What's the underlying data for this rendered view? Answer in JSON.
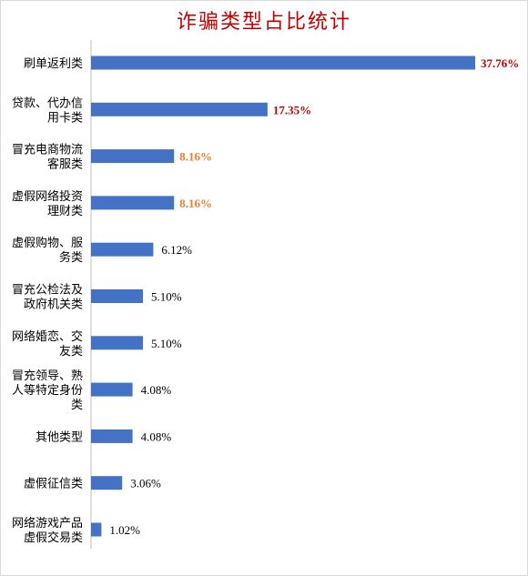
{
  "chart_data": {
    "type": "bar",
    "orientation": "horizontal",
    "title": "诈骗类型占比统计",
    "categories": [
      [
        "刷单返利类"
      ],
      [
        "贷款、代办信",
        "用卡类"
      ],
      [
        "冒充电商物流",
        "客服类"
      ],
      [
        "虚假网络投资",
        "理财类"
      ],
      [
        "虚假购物、服",
        "务类"
      ],
      [
        "冒充公检法及",
        "政府机关类"
      ],
      [
        "网络婚恋、交",
        "友类"
      ],
      [
        "冒充领导、熟",
        "人等特定身份",
        "类"
      ],
      [
        "其他类型"
      ],
      [
        "虚假征信类"
      ],
      [
        "网络游戏产品",
        "虚假交易类"
      ]
    ],
    "values": [
      37.76,
      17.35,
      8.16,
      8.16,
      6.12,
      5.1,
      5.1,
      4.08,
      4.08,
      3.06,
      1.02
    ],
    "labels": [
      "37.76%",
      "17.35%",
      "8.16%",
      "8.16%",
      "6.12%",
      "5.10%",
      "5.10%",
      "4.08%",
      "4.08%",
      "3.06%",
      "1.02%"
    ],
    "label_styles": [
      "red",
      "red",
      "orange",
      "orange",
      "plain",
      "plain",
      "plain",
      "plain",
      "plain",
      "plain",
      "plain"
    ],
    "xlim": [
      0,
      37.76
    ],
    "grid": false,
    "legend": "none",
    "colors": {
      "bar": "#4472c4",
      "title": "#c00000",
      "red": "#c00000",
      "orange": "#ed7d31",
      "plain": "#000000",
      "axis": "#bfbfbf"
    }
  }
}
